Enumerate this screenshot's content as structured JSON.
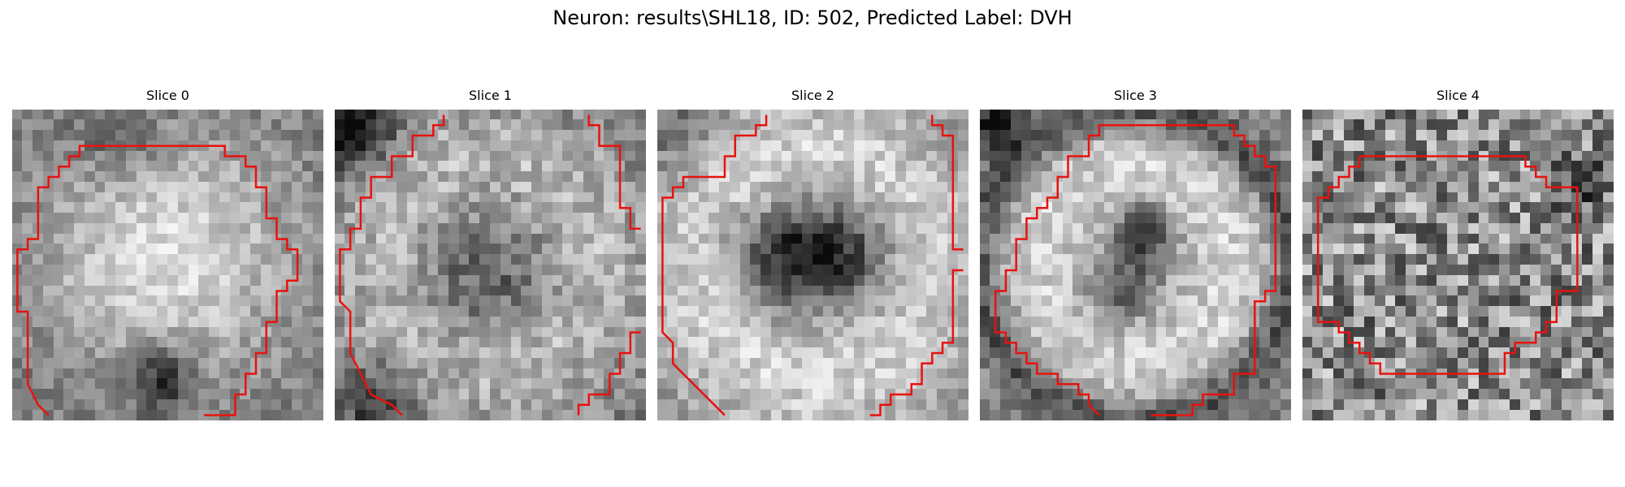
{
  "figure": {
    "suptitle": "Neuron: results\\SHL18, ID: 502, Predicted Label: DVH",
    "contour_color": "#e8120e",
    "colormap": "gray",
    "panels": [
      {
        "title": "Slice 0",
        "pattern": "bright-blob-dark-lower-band",
        "contour": [
          [
            3,
            29
          ],
          [
            2,
            28
          ],
          [
            1,
            26
          ],
          [
            1,
            19
          ],
          [
            0,
            19
          ],
          [
            0,
            13
          ],
          [
            1,
            13
          ],
          [
            1,
            12
          ],
          [
            2,
            12
          ],
          [
            2,
            7
          ],
          [
            3,
            7
          ],
          [
            3,
            6
          ],
          [
            4,
            6
          ],
          [
            4,
            5
          ],
          [
            5,
            5
          ],
          [
            5,
            4
          ],
          [
            6,
            4
          ],
          [
            6,
            3
          ],
          [
            20,
            3
          ],
          [
            20,
            4
          ],
          [
            22,
            4
          ],
          [
            22,
            5
          ],
          [
            23,
            5
          ],
          [
            23,
            7
          ],
          [
            24,
            7
          ],
          [
            24,
            10
          ],
          [
            25,
            10
          ],
          [
            25,
            12
          ],
          [
            26,
            12
          ],
          [
            26,
            13
          ],
          [
            27,
            13
          ],
          [
            27,
            16
          ],
          [
            26,
            16
          ],
          [
            26,
            17
          ],
          [
            25,
            17
          ],
          [
            25,
            20
          ],
          [
            24,
            20
          ],
          [
            24,
            23
          ],
          [
            23,
            23
          ],
          [
            23,
            25
          ],
          [
            22,
            25
          ],
          [
            22,
            27
          ],
          [
            21,
            27
          ],
          [
            21,
            29
          ],
          [
            18,
            29
          ]
        ]
      },
      {
        "title": "Slice 1",
        "pattern": "ring-dark-center-dark-corner",
        "contour": [
          [
            6,
            29
          ],
          [
            5,
            28
          ],
          [
            3,
            27
          ],
          [
            2,
            25
          ],
          [
            1,
            23
          ],
          [
            1,
            19
          ],
          [
            0,
            18
          ],
          [
            0,
            13
          ],
          [
            1,
            13
          ],
          [
            1,
            11
          ],
          [
            2,
            11
          ],
          [
            2,
            8
          ],
          [
            3,
            8
          ],
          [
            3,
            6
          ],
          [
            5,
            6
          ],
          [
            5,
            4
          ],
          [
            7,
            4
          ],
          [
            7,
            2
          ],
          [
            9,
            2
          ],
          [
            9,
            1
          ],
          [
            10,
            1
          ],
          [
            10,
            0
          ]
        ],
        "contour2": [
          [
            24,
            0
          ],
          [
            24,
            1
          ],
          [
            25,
            1
          ],
          [
            25,
            3
          ],
          [
            27,
            3
          ],
          [
            27,
            9
          ],
          [
            28,
            9
          ],
          [
            28,
            11
          ],
          [
            29,
            11
          ]
        ],
        "contour3": [
          [
            29,
            21
          ],
          [
            28,
            21
          ],
          [
            28,
            23
          ],
          [
            27,
            23
          ],
          [
            27,
            25
          ],
          [
            26,
            25
          ],
          [
            26,
            27
          ],
          [
            24,
            27
          ],
          [
            24,
            28
          ],
          [
            23,
            28
          ],
          [
            23,
            29
          ]
        ]
      },
      {
        "title": "Slice 2",
        "pattern": "ring-dark-blob-center",
        "contour": [
          [
            6,
            29
          ],
          [
            5,
            28
          ],
          [
            4,
            27
          ],
          [
            3,
            26
          ],
          [
            2,
            25
          ],
          [
            1,
            24
          ],
          [
            1,
            22
          ],
          [
            0,
            21
          ],
          [
            0,
            8
          ],
          [
            1,
            8
          ],
          [
            1,
            7
          ],
          [
            2,
            7
          ],
          [
            2,
            6
          ],
          [
            6,
            6
          ],
          [
            6,
            4
          ],
          [
            7,
            4
          ],
          [
            7,
            2
          ],
          [
            9,
            2
          ],
          [
            9,
            1
          ],
          [
            10,
            1
          ],
          [
            10,
            0
          ]
        ],
        "contour2": [
          [
            26,
            0
          ],
          [
            26,
            1
          ],
          [
            27,
            1
          ],
          [
            27,
            2
          ],
          [
            28,
            2
          ],
          [
            28,
            13
          ],
          [
            29,
            13
          ]
        ],
        "contour3": [
          [
            29,
            15
          ],
          [
            28,
            15
          ],
          [
            28,
            22
          ],
          [
            27,
            22
          ],
          [
            27,
            23
          ],
          [
            26,
            23
          ],
          [
            26,
            24
          ],
          [
            25,
            24
          ],
          [
            25,
            26
          ],
          [
            24,
            26
          ],
          [
            24,
            27
          ],
          [
            22,
            27
          ],
          [
            22,
            28
          ],
          [
            21,
            28
          ],
          [
            21,
            29
          ],
          [
            20,
            29
          ]
        ]
      },
      {
        "title": "Slice 3",
        "pattern": "ring-dark-center-bright",
        "contour": [
          [
            11,
            29
          ],
          [
            10,
            28
          ],
          [
            10,
            27
          ],
          [
            9,
            27
          ],
          [
            9,
            26
          ],
          [
            7,
            26
          ],
          [
            7,
            25
          ],
          [
            5,
            25
          ],
          [
            5,
            24
          ],
          [
            4,
            24
          ],
          [
            4,
            23
          ],
          [
            3,
            23
          ],
          [
            3,
            22
          ],
          [
            2,
            22
          ],
          [
            2,
            21
          ],
          [
            1,
            21
          ],
          [
            1,
            17
          ],
          [
            2,
            17
          ],
          [
            2,
            15
          ],
          [
            3,
            15
          ],
          [
            3,
            12
          ],
          [
            4,
            12
          ],
          [
            4,
            10
          ],
          [
            5,
            10
          ],
          [
            5,
            9
          ],
          [
            6,
            9
          ],
          [
            6,
            8
          ],
          [
            7,
            8
          ],
          [
            7,
            6
          ],
          [
            8,
            6
          ],
          [
            8,
            4
          ],
          [
            10,
            4
          ],
          [
            10,
            2
          ],
          [
            11,
            2
          ],
          [
            11,
            1
          ],
          [
            24,
            1
          ],
          [
            24,
            2
          ],
          [
            25,
            2
          ],
          [
            25,
            3
          ],
          [
            26,
            3
          ],
          [
            26,
            4
          ],
          [
            27,
            4
          ],
          [
            27,
            5
          ],
          [
            28,
            5
          ],
          [
            28,
            17
          ],
          [
            27,
            17
          ],
          [
            27,
            18
          ],
          [
            26,
            18
          ],
          [
            26,
            25
          ],
          [
            24,
            25
          ],
          [
            24,
            27
          ],
          [
            21,
            27
          ],
          [
            21,
            28
          ],
          [
            20,
            28
          ],
          [
            20,
            29
          ],
          [
            16,
            29
          ]
        ]
      },
      {
        "title": "Slice 4",
        "pattern": "noise",
        "contour": [
          [
            5,
            4
          ],
          [
            21,
            4
          ],
          [
            21,
            5
          ],
          [
            22,
            5
          ],
          [
            22,
            6
          ],
          [
            23,
            6
          ],
          [
            23,
            7
          ],
          [
            26,
            7
          ],
          [
            26,
            17
          ],
          [
            24,
            17
          ],
          [
            24,
            20
          ],
          [
            23,
            20
          ],
          [
            23,
            21
          ],
          [
            22,
            21
          ],
          [
            22,
            22
          ],
          [
            20,
            22
          ],
          [
            20,
            23
          ],
          [
            19,
            23
          ],
          [
            19,
            25
          ],
          [
            7,
            25
          ],
          [
            7,
            24
          ],
          [
            6,
            24
          ],
          [
            6,
            23
          ],
          [
            5,
            23
          ],
          [
            5,
            22
          ],
          [
            4,
            22
          ],
          [
            4,
            21
          ],
          [
            3,
            21
          ],
          [
            3,
            20
          ],
          [
            1,
            20
          ],
          [
            1,
            17
          ],
          [
            1,
            8
          ],
          [
            2,
            8
          ],
          [
            2,
            7
          ],
          [
            3,
            7
          ],
          [
            3,
            6
          ],
          [
            4,
            6
          ],
          [
            4,
            5
          ],
          [
            5,
            5
          ],
          [
            5,
            4
          ]
        ]
      }
    ]
  }
}
